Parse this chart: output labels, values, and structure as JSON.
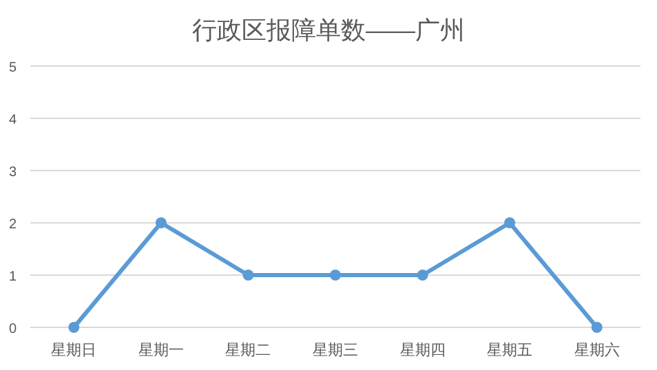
{
  "chart_data": {
    "type": "line",
    "title": "行政区报障单数——广州",
    "categories": [
      "星期日",
      "星期一",
      "星期二",
      "星期三",
      "星期四",
      "星期五",
      "星期六"
    ],
    "series": [
      {
        "color": "#5b9bd5",
        "values": [
          0,
          2,
          1,
          1,
          1,
          2,
          0
        ]
      }
    ],
    "ylim": [
      0,
      5
    ],
    "yticks": [
      0,
      1,
      2,
      3,
      4,
      5
    ],
    "grid": "y",
    "marker": "circle",
    "line_style": "solid"
  }
}
